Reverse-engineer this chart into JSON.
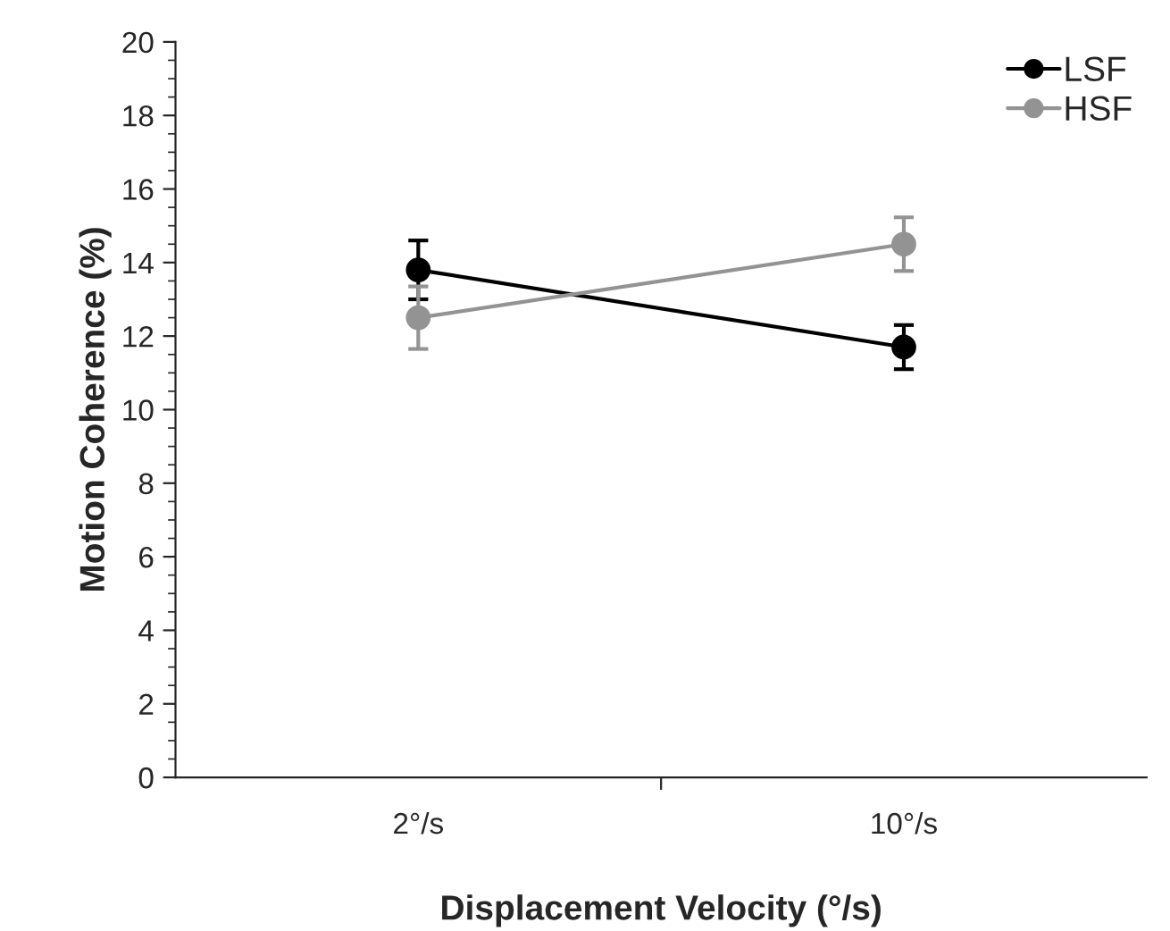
{
  "chart_data": {
    "type": "line",
    "xlabel": "Displacement Velocity (°/s)",
    "ylabel": "Motion Coherence (%)",
    "categories": [
      "2°/s",
      "10°/s"
    ],
    "series": [
      {
        "name": "LSF",
        "color": "#000000",
        "values": [
          13.8,
          11.7
        ],
        "errors": [
          0.8,
          0.6
        ]
      },
      {
        "name": "HSF",
        "color": "#939393",
        "values": [
          12.5,
          14.5
        ],
        "errors": [
          0.85,
          0.73
        ]
      }
    ],
    "ylim": [
      0,
      20
    ],
    "yticks": [
      0,
      2,
      4,
      6,
      8,
      10,
      12,
      14,
      16,
      18,
      20
    ],
    "marker": "circle",
    "line_style": "solid",
    "grid": false,
    "legend": "top right"
  }
}
